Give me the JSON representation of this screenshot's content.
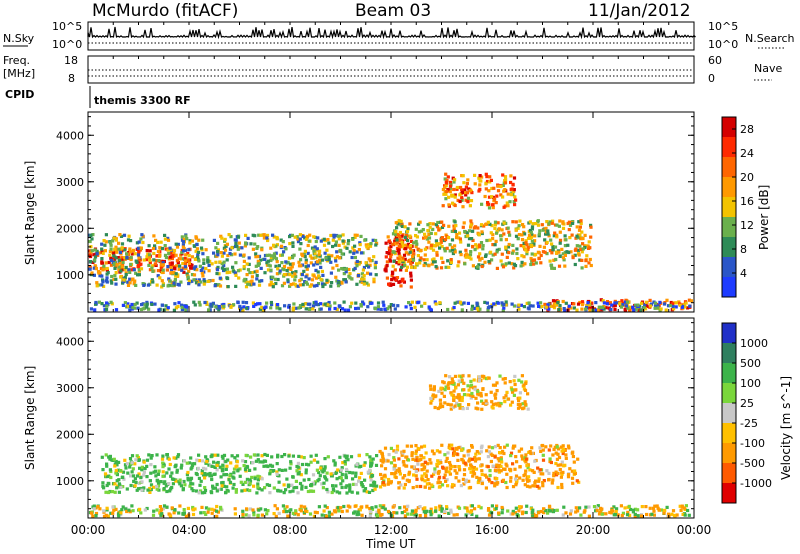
{
  "header": {
    "station": "McMurdo (fitACF)",
    "beam": "Beam 03",
    "date": "11/Jan/2012"
  },
  "status_rows": {
    "nsky_label": "N.Sky",
    "nsky_ticks": [
      "10^5",
      "10^0"
    ],
    "nsearch_label": "N.Search",
    "nsearch_ticks": [
      "10^5",
      "10^0"
    ],
    "freq_label_1": "Freq.",
    "freq_label_2": "[MHz]",
    "freq_ticks": [
      "18",
      "8"
    ],
    "nave_label": "Nave",
    "nave_ticks": [
      "60",
      "0"
    ],
    "cpid_label": "CPID",
    "cpid_value": "themis 3300 RF"
  },
  "colors": {
    "power": [
      "#1e3cff",
      "#2a56c8",
      "#2e8b57",
      "#6ab04c",
      "#f3c300",
      "#ff9900",
      "#ff6600",
      "#ff2a00",
      "#d40000"
    ],
    "velocity": [
      "#2030c8",
      "#2f7f5f",
      "#3cb34a",
      "#7ad63b",
      "#c8c8c8",
      "#ffc000",
      "#ff9a00",
      "#ff5a00",
      "#e00000"
    ]
  },
  "chart_data": [
    {
      "type": "heatmap",
      "quantity": "power",
      "ylabel": "Slant Range [km]",
      "yticks": [
        "1000",
        "2000",
        "3000",
        "4000"
      ],
      "ylim": [
        200,
        4500
      ],
      "xlim_hours": [
        0,
        24
      ],
      "cbar_label": "Power [dB]",
      "cbar_ticks": [
        "4",
        "8",
        "12",
        "16",
        "20",
        "24",
        "28"
      ],
      "cbar_range": [
        0,
        30
      ],
      "regions": [
        {
          "t0": 0.0,
          "t1": 4.2,
          "r0": 1000,
          "r1": 1600,
          "v": 24
        },
        {
          "t0": 0.0,
          "t1": 11.5,
          "r0": 700,
          "r1": 1900,
          "v": 12
        },
        {
          "t0": 11.7,
          "t1": 13.0,
          "r0": 700,
          "r1": 1900,
          "v": 26
        },
        {
          "t0": 12.0,
          "t1": 20.0,
          "r0": 1100,
          "r1": 2200,
          "v": 15
        },
        {
          "t0": 14.0,
          "t1": 17.0,
          "r0": 2400,
          "r1": 3200,
          "v": 20
        },
        {
          "t0": 18.0,
          "t1": 24.0,
          "r0": 200,
          "r1": 500,
          "v": 24
        },
        {
          "t0": 0.0,
          "t1": 24.0,
          "r0": 200,
          "r1": 450,
          "v": 8
        }
      ]
    },
    {
      "type": "heatmap",
      "quantity": "velocity",
      "ylabel": "Slant Range [km]",
      "yticks": [
        "1000",
        "2000",
        "3000",
        "4000"
      ],
      "ylim": [
        200,
        4500
      ],
      "xlim_hours": [
        0,
        24
      ],
      "cbar_label": "Velocity [m s^-1]",
      "cbar_ticks": [
        "1000",
        "500",
        "100",
        "25",
        "-25",
        "-100",
        "-500",
        "-1000"
      ],
      "regions": [
        {
          "t0": 0.5,
          "t1": 11.5,
          "r0": 700,
          "r1": 1600,
          "v": 200
        },
        {
          "t0": 11.5,
          "t1": 19.5,
          "r0": 800,
          "r1": 1800,
          "v": -250
        },
        {
          "t0": 13.5,
          "t1": 17.5,
          "r0": 2500,
          "r1": 3300,
          "v": -200
        },
        {
          "t0": 0.0,
          "t1": 24.0,
          "r0": 200,
          "r1": 500,
          "v": 0
        }
      ],
      "xlabel": "Time UT",
      "xticks": [
        "00:00",
        "04:00",
        "08:00",
        "12:00",
        "16:00",
        "20:00",
        "00:00"
      ]
    }
  ]
}
